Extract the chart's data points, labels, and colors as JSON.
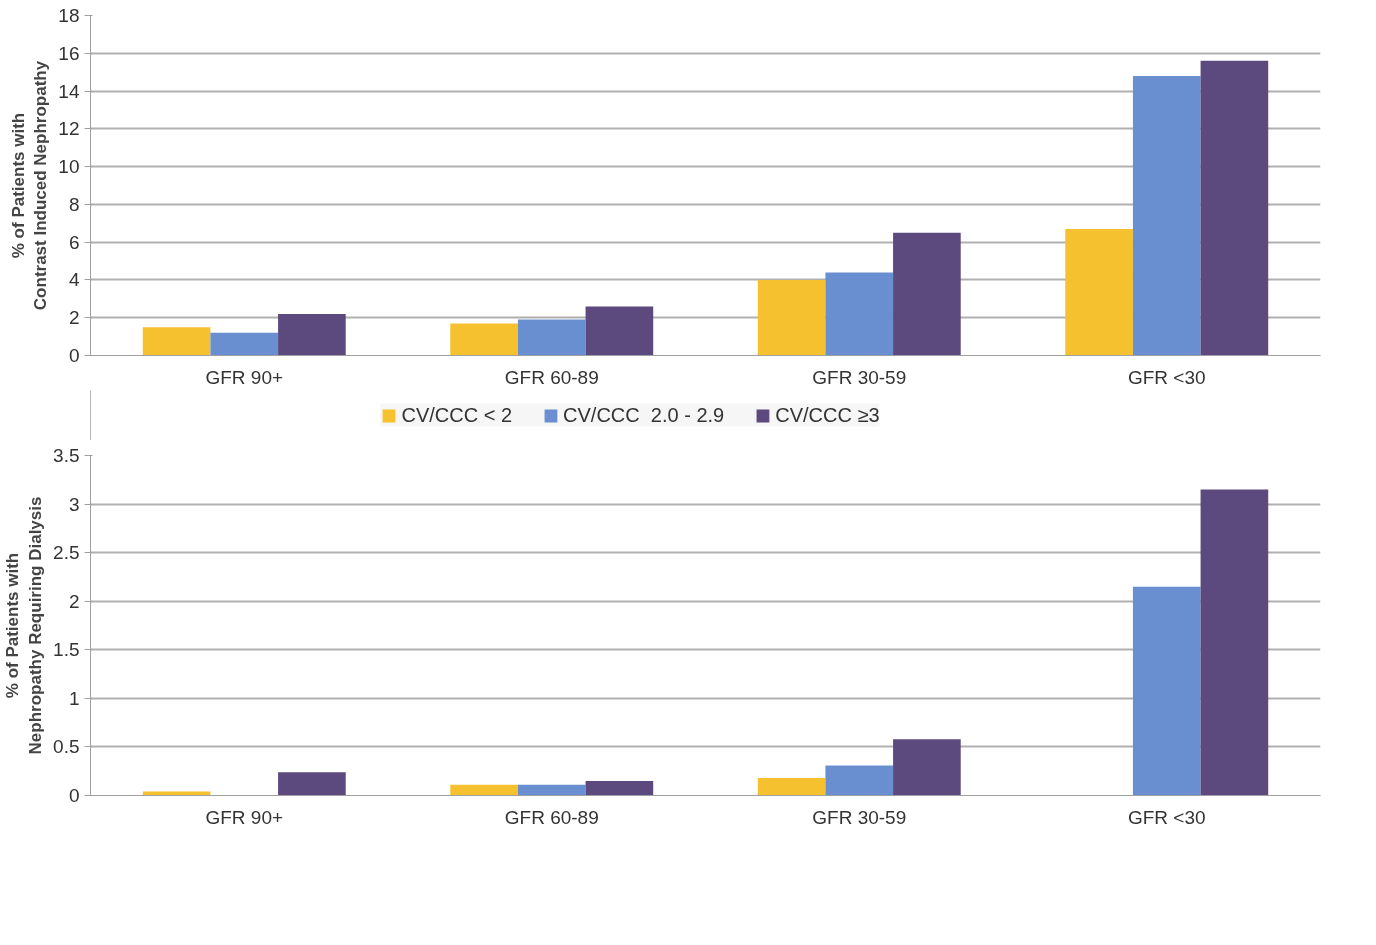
{
  "chart_data": [
    {
      "type": "bar",
      "ylabel": "% of Patients with\nContrast Induced Nephropathy",
      "categories": [
        "GFR 90+",
        "GFR 60-89",
        "GFR 30-59",
        "GFR <30"
      ],
      "series": [
        {
          "name": "CV/CCC < 2",
          "color": "#f5c12e",
          "values": [
            1.5,
            1.7,
            4.0,
            6.7
          ]
        },
        {
          "name": "CV/CCC  2.0 - 2.9",
          "color": "#6a8fd0",
          "values": [
            1.2,
            1.9,
            4.4,
            14.8
          ]
        },
        {
          "name": "CV/CCC ≥3",
          "color": "#5c497e",
          "values": [
            2.2,
            2.6,
            6.5,
            15.6
          ]
        }
      ],
      "ylim": [
        0,
        18
      ],
      "yticks": [
        0,
        2,
        4,
        6,
        8,
        10,
        12,
        14,
        16,
        18
      ],
      "grid": "y",
      "legend": "bottom"
    },
    {
      "type": "bar",
      "ylabel": "% of Patients with\nNephropathy Requiring Dialysis",
      "categories": [
        "GFR 90+",
        "GFR 60-89",
        "GFR 30-59",
        "GFR <30"
      ],
      "series": [
        {
          "color": "#f5c12e",
          "values": [
            0.04,
            0.11,
            0.18,
            0
          ]
        },
        {
          "color": "#6a8fd0",
          "values": [
            0,
            0.11,
            0.31,
            2.15
          ]
        },
        {
          "color": "#5c497e",
          "values": [
            0.24,
            0.15,
            0.58,
            3.15
          ]
        }
      ],
      "ylim": [
        0,
        3.5
      ],
      "yticks": [
        0,
        0.5,
        1,
        1.5,
        2,
        2.5,
        3,
        3.5
      ],
      "grid": "y"
    }
  ]
}
